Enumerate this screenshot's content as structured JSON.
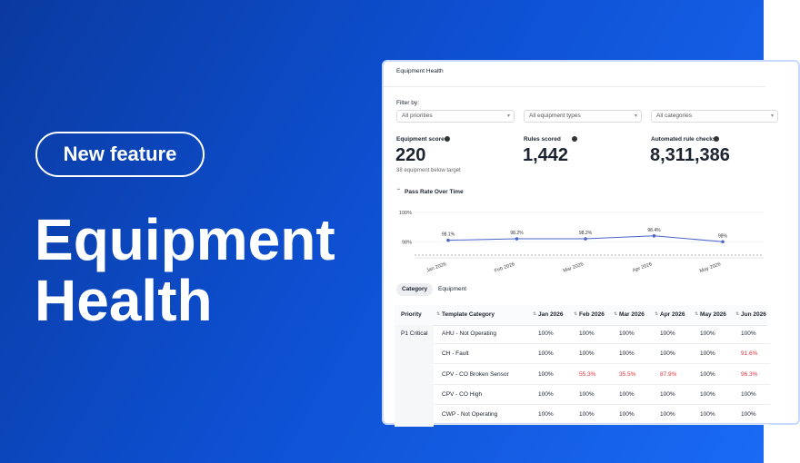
{
  "badge": "New feature",
  "headline": [
    "Equipment",
    "Health"
  ],
  "panel": {
    "title": "Equipment Health",
    "filter_label": "Filter by:",
    "filters": [
      "All priorities",
      "All equipment types",
      "All categories"
    ],
    "metrics": [
      {
        "label": "Equipment scored",
        "value": "220",
        "note": "38 equipment below target"
      },
      {
        "label": "Rules scored",
        "value": "1,442"
      },
      {
        "label": "Automated rule checks",
        "value": "8,311,386"
      }
    ],
    "tabs": [
      "Category",
      "Equipment"
    ],
    "table": {
      "columns": [
        "Priority",
        "Template Category",
        "Jan 2026",
        "Feb 2026",
        "Mar 2026",
        "Apr 2026",
        "May 2026",
        "Jun 2026"
      ],
      "rows": [
        {
          "priority": "P1 Critical",
          "category": "AHU - Not Operating",
          "cells": [
            "100%",
            "100%",
            "100%",
            "100%",
            "100%",
            "100%"
          ]
        },
        {
          "category": "CH - Fault",
          "cells": [
            "100%",
            "100%",
            "100%",
            "100%",
            "100%",
            "91.6%"
          ]
        },
        {
          "category": "CPV - CO Broken Sensor",
          "cells": [
            "100%",
            "55.3%",
            "35.5%",
            "87.9%",
            "100%",
            "96.3%"
          ]
        },
        {
          "category": "CPV - CO High",
          "cells": [
            "100%",
            "100%",
            "100%",
            "100%",
            "100%",
            "100%"
          ]
        },
        {
          "category": "CWP - Not Operating",
          "cells": [
            "100%",
            "100%",
            "100%",
            "100%",
            "100%",
            "100%"
          ]
        }
      ]
    }
  },
  "chart_data": {
    "type": "line",
    "title": "Pass Rate Over Time",
    "categories": [
      "Jan 2026",
      "Feb 2026",
      "Mar 2026",
      "Apr 2026",
      "May 2026"
    ],
    "values": [
      98.1,
      98.2,
      98.2,
      98.4,
      98
    ],
    "value_labels": [
      "98.1%",
      "98.2%",
      "98.2%",
      "98.4%",
      "98%"
    ],
    "color": "#4a63c8",
    "ylim": [
      96.9,
      100
    ],
    "yticks": [
      {
        "value": 100,
        "label": "100%"
      },
      {
        "value": 98,
        "label": "98%"
      }
    ],
    "grid": true
  }
}
